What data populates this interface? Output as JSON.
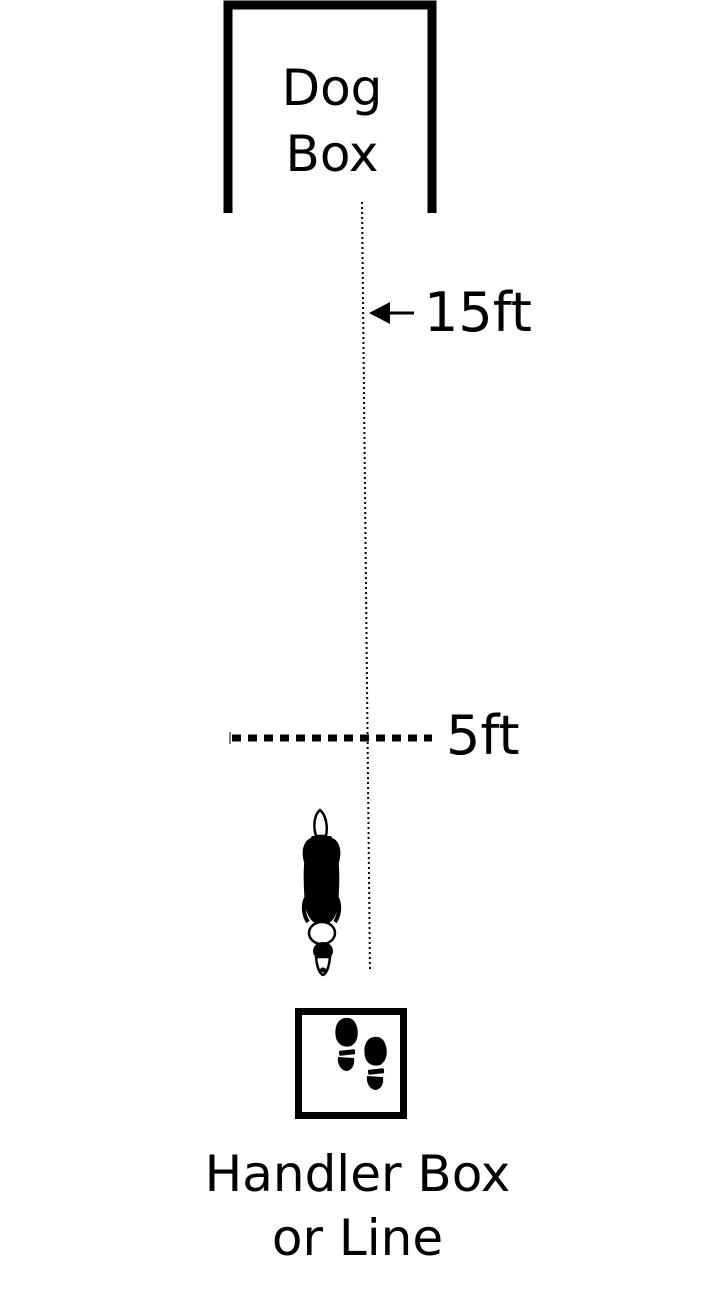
{
  "dog_box": {
    "line1": "Dog",
    "line2": "Box"
  },
  "marker_15": {
    "label": "15ft"
  },
  "marker_5": {
    "label": "5ft"
  },
  "handler_box": {
    "line1": "Handler Box",
    "line2": "or Line",
    "icon": "footprints-icon"
  },
  "dog": {
    "icon": "dog-top-view-icon"
  },
  "colors": {
    "ink": "#000000",
    "background": "#ffffff"
  }
}
